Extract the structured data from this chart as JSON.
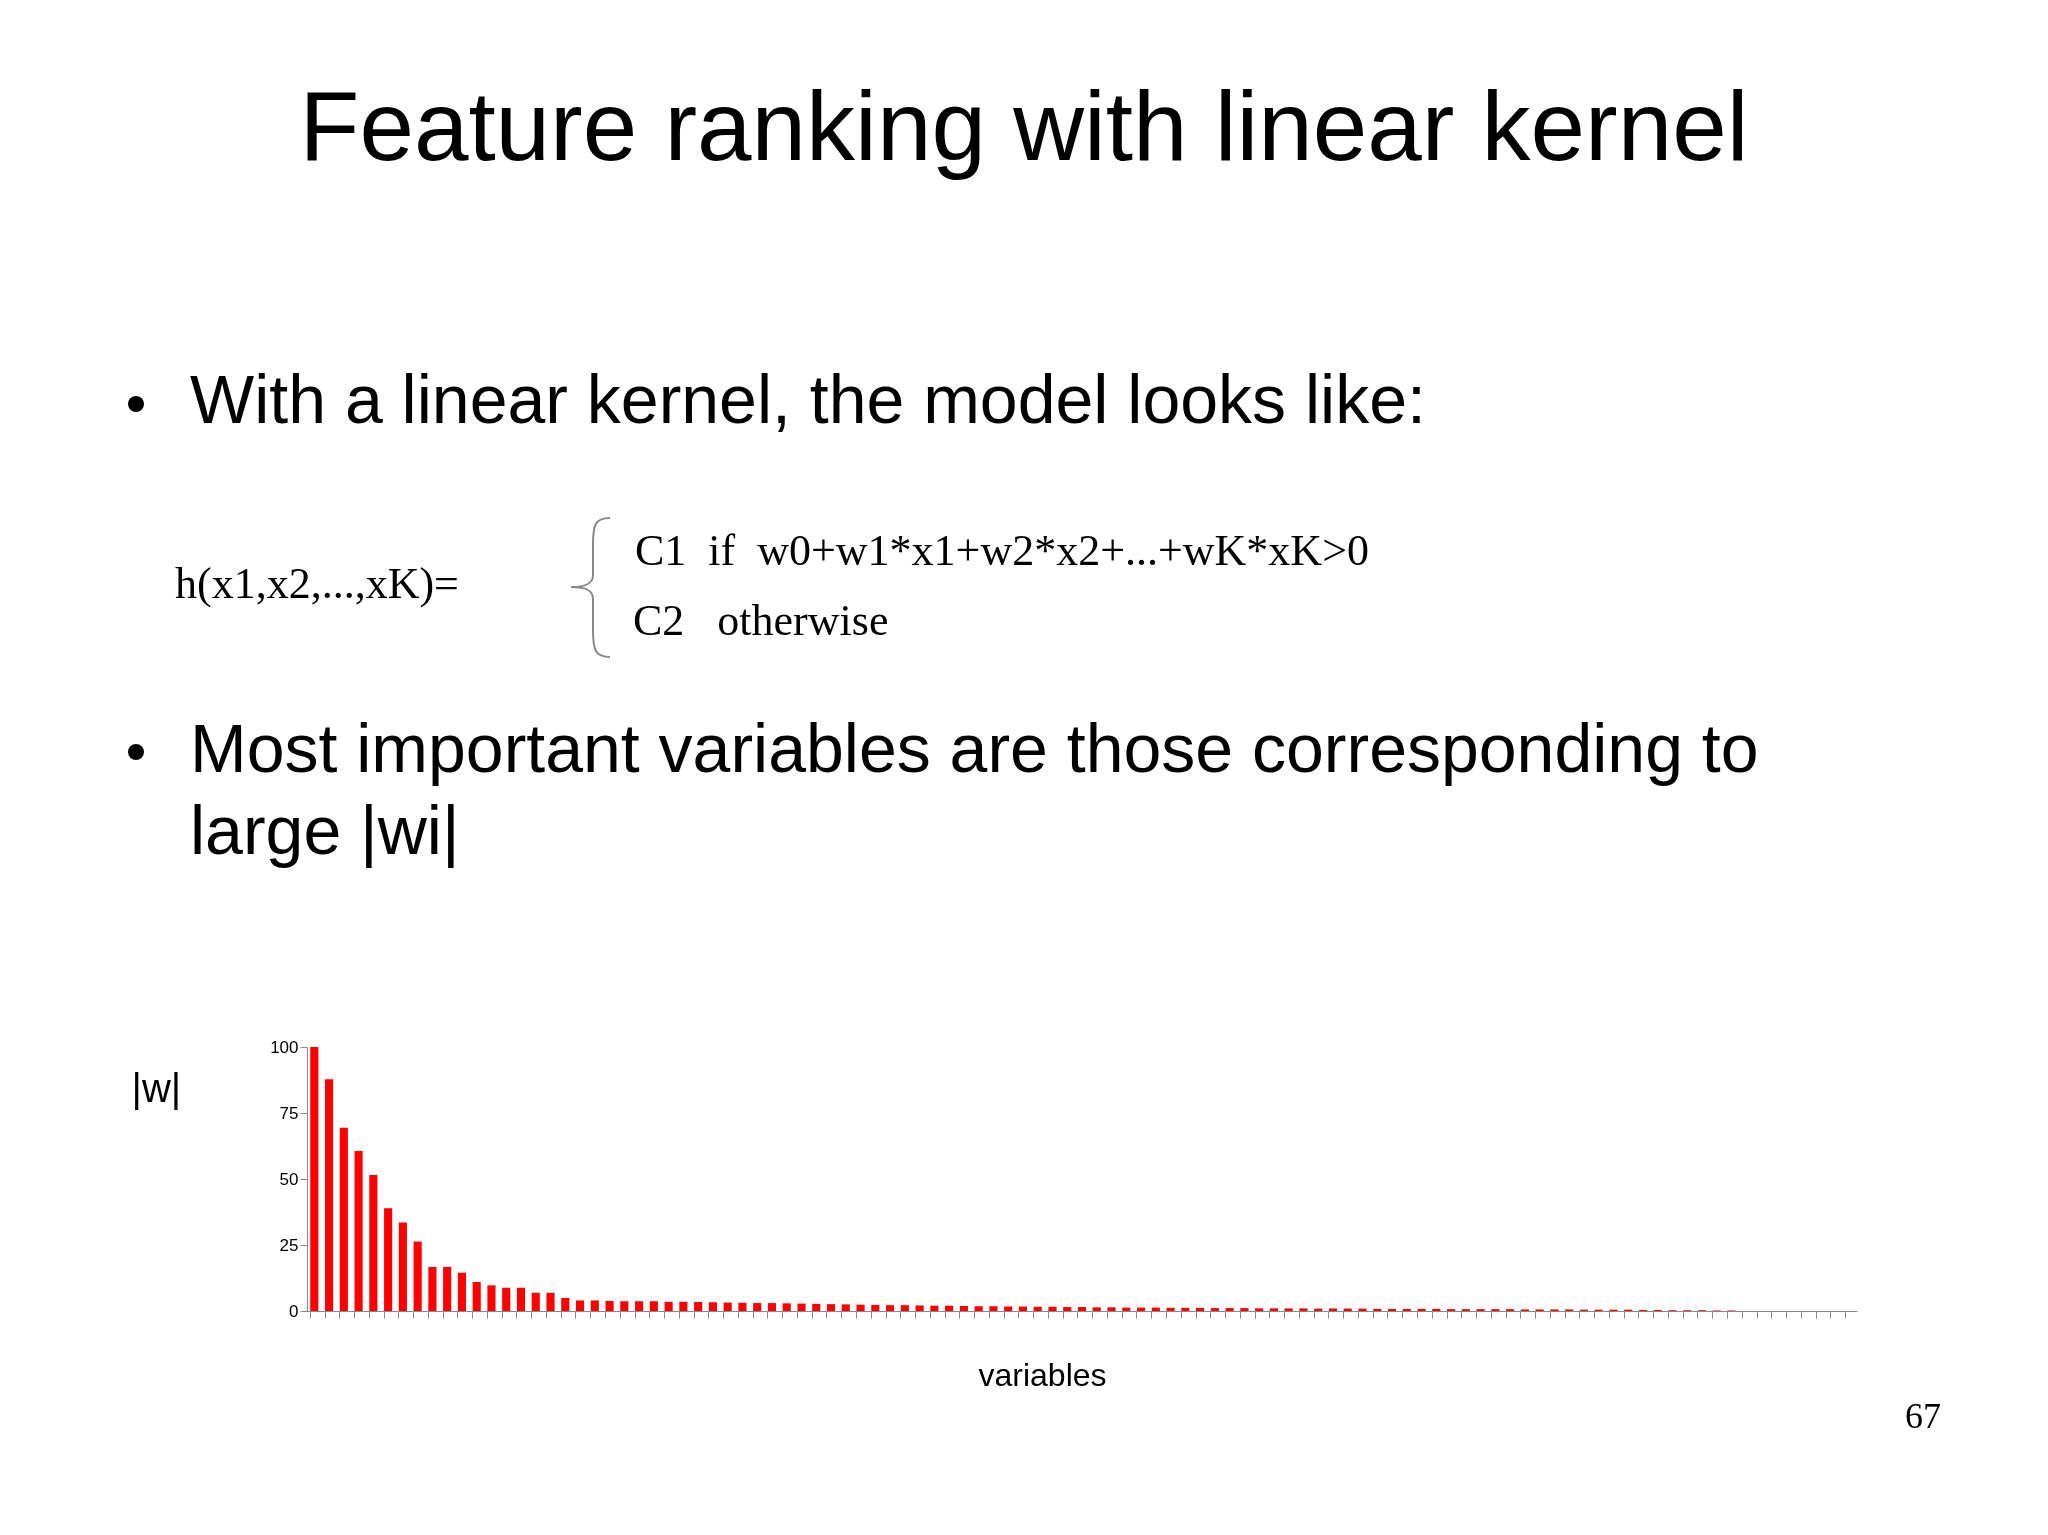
{
  "chart_data": {
    "type": "bar",
    "title": "Feature ranking with linear kernel",
    "annotations": [
      "With a linear kernel, the model looks like:",
      "h(x1,x2,...,xK)=",
      "C1  if  w0+w1*x1+w2*x2+...+wK*xK>0",
      "C2   otherwise",
      "Most important variables are those corresponding to large |wi|",
      "67"
    ],
    "xlabel": "variables",
    "ylabel": "|w|",
    "categories": [
      null,
      null,
      null,
      null,
      null,
      null,
      null,
      null,
      null,
      null,
      null,
      null,
      null,
      null,
      null,
      null,
      null,
      null,
      null,
      null,
      null,
      null,
      null,
      null,
      null,
      null,
      null,
      null,
      null,
      null,
      null,
      null,
      null,
      null,
      null,
      null,
      null,
      null,
      null,
      null,
      null,
      null,
      null,
      null,
      null,
      null,
      null,
      null,
      null,
      null,
      null,
      null,
      null,
      null,
      null,
      null,
      null,
      null,
      null,
      null,
      null,
      null,
      null,
      null,
      null,
      null,
      null,
      null,
      null,
      null,
      null,
      null,
      null,
      null,
      null,
      null,
      null,
      null,
      null,
      null,
      null,
      null,
      null,
      null,
      null,
      null,
      null,
      null,
      null,
      null,
      null,
      null,
      null,
      null,
      null,
      null,
      null,
      null,
      null,
      null,
      null,
      null,
      null,
      null,
      null
    ],
    "values": [
      100,
      87.8,
      69.4,
      60.6,
      51.5,
      38.9,
      33.5,
      26.3,
      16.7,
      16.7,
      14.5,
      11,
      9.7,
      8.8,
      8.8,
      6.9,
      6.9,
      4.9,
      4.0,
      4.0,
      3.8,
      3.7,
      3.7,
      3.7,
      3.5,
      3.5,
      3.4,
      3.3,
      3.2,
      3.1,
      3,
      3,
      2.9,
      2.8,
      2.7,
      2.6,
      2.5,
      2.4,
      2.3,
      2.2,
      2.2,
      2.1,
      2,
      2,
      1.9,
      1.8,
      1.8,
      1.7,
      1.7,
      1.6,
      1.6,
      1.5,
      1.5,
      1.4,
      1.4,
      1.3,
      1.3,
      1.3,
      1.2,
      1.2,
      1.2,
      1.1,
      1.1,
      1.1,
      1,
      1,
      1,
      1,
      0.9,
      0.9,
      0.9,
      0.9,
      0.8,
      0.8,
      0.8,
      0.8,
      0.8,
      0.7,
      0.7,
      0.7,
      0.7,
      0.7,
      0.6,
      0.6,
      0.6,
      0.6,
      0.5,
      0.5,
      0.5,
      0.5,
      0.4,
      0.4,
      0.3,
      0.3,
      0.3,
      0.2,
      0.2,
      0,
      0,
      0,
      0,
      0,
      0,
      0,
      0
    ],
    "color": "#ff0000",
    "ylim": [
      0,
      100
    ],
    "yticks": [
      0,
      25,
      50,
      75,
      100
    ],
    "grid": false
  }
}
